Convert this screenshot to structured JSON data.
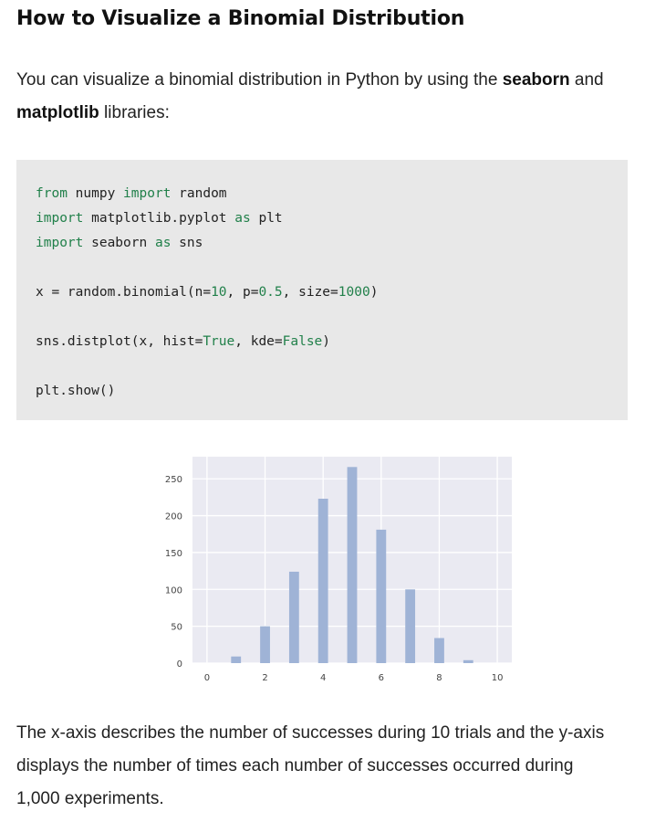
{
  "heading": "How to Visualize a Binomial Distribution",
  "intro": {
    "before": "You can visualize a binomial distribution in Python by using the ",
    "bold1": "seaborn",
    "middle": " and ",
    "bold2": "matplotlib",
    "after": " libraries:"
  },
  "code": {
    "line1": {
      "kw1": "from",
      "mod": " numpy ",
      "kw2": "import",
      "rest": " random"
    },
    "line2": {
      "kw1": "import",
      "mod": " matplotlib.pyplot ",
      "kw2": "as",
      "rest": " plt"
    },
    "line3": {
      "kw1": "import",
      "mod": " seaborn ",
      "kw2": "as",
      "rest": " sns"
    },
    "line4": {
      "a": "x = random.binomial(n=",
      "n": "10",
      "b": ", p=",
      "p": "0.5",
      "c": ", size=",
      "size": "1000",
      "d": ")"
    },
    "line5": {
      "a": "sns.distplot(x, hist=",
      "hist": "True",
      "b": ", kde=",
      "kde": "False",
      "c": ")"
    },
    "line6": "plt.show()"
  },
  "chart_data": {
    "type": "bar",
    "x": [
      1,
      2,
      3,
      4,
      5,
      6,
      7,
      8,
      9
    ],
    "values": [
      9,
      50,
      124,
      223,
      266,
      181,
      100,
      34,
      4
    ],
    "xticks": [
      0,
      2,
      4,
      6,
      8,
      10
    ],
    "yticks": [
      0,
      50,
      100,
      150,
      200,
      250
    ],
    "xlim": [
      -0.5,
      10.5
    ],
    "ylim": [
      0,
      280
    ],
    "grid": true,
    "bar_color": "#9fb3d6",
    "background": "#eaeaf2",
    "title": "",
    "xlabel": "",
    "ylabel": ""
  },
  "outro": "The x-axis describes the number of successes during 10 trials and the y-axis displays the number of times each number of successes occurred during 1,000 experiments."
}
